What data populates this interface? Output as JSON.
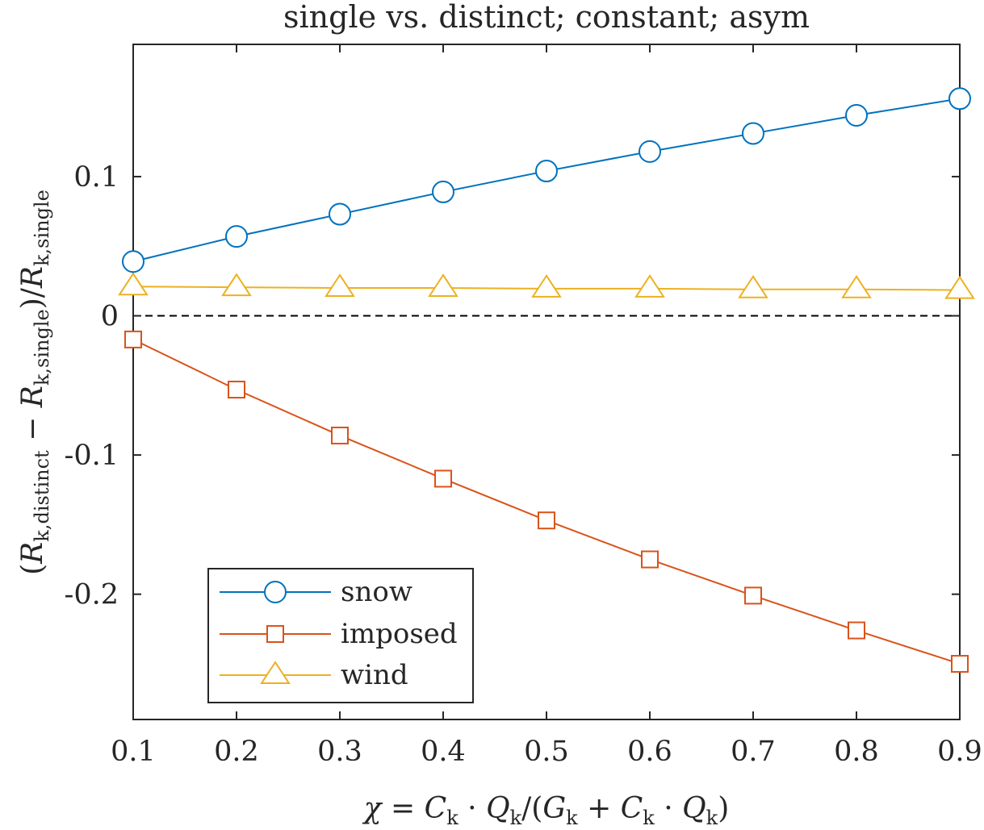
{
  "chart_data": {
    "type": "line",
    "title": "single vs. distinct; constant; asym",
    "xlabel": "χ = C_k · Q_k/(G_k + C_k · Q_k)",
    "ylabel": "(R_k,distinct − R_k,single)/R_k,single",
    "xlim": [
      0.1,
      0.9
    ],
    "ylim": [
      -0.29,
      0.195
    ],
    "x": [
      0.1,
      0.2,
      0.3,
      0.4,
      0.5,
      0.6,
      0.7,
      0.8,
      0.9
    ],
    "x_ticks": [
      {
        "value": 0.1,
        "label": "0.1"
      },
      {
        "value": 0.2,
        "label": "0.2"
      },
      {
        "value": 0.3,
        "label": "0.3"
      },
      {
        "value": 0.4,
        "label": "0.4"
      },
      {
        "value": 0.5,
        "label": "0.5"
      },
      {
        "value": 0.6,
        "label": "0.6"
      },
      {
        "value": 0.7,
        "label": "0.7"
      },
      {
        "value": 0.8,
        "label": "0.8"
      },
      {
        "value": 0.9,
        "label": "0.9"
      }
    ],
    "y_ticks": [
      {
        "value": 0.1,
        "label": "0.1"
      },
      {
        "value": 0,
        "label": "0"
      },
      {
        "value": -0.1,
        "label": "-0.1"
      },
      {
        "value": -0.2,
        "label": "-0.2"
      }
    ],
    "reference_line": {
      "y": 0,
      "style": "dashed",
      "color": "#000000"
    },
    "grid": false,
    "legend_position": "bottom-left",
    "series": [
      {
        "name": "snow",
        "marker": "circle",
        "color": "#0072BD",
        "values": [
          0.039,
          0.057,
          0.073,
          0.089,
          0.104,
          0.118,
          0.131,
          0.144,
          0.156
        ]
      },
      {
        "name": "imposed",
        "marker": "square",
        "color": "#D95319",
        "values": [
          -0.017,
          -0.053,
          -0.086,
          -0.117,
          -0.147,
          -0.175,
          -0.201,
          -0.226,
          -0.25
        ]
      },
      {
        "name": "wind",
        "marker": "triangle",
        "color": "#EDB120",
        "values": [
          0.021,
          0.0205,
          0.02,
          0.02,
          0.0195,
          0.0195,
          0.019,
          0.019,
          0.0185
        ]
      }
    ]
  }
}
